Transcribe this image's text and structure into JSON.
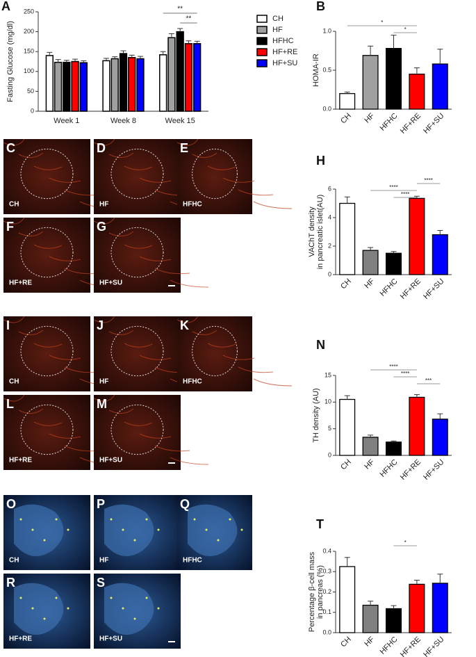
{
  "chart_data": [
    {
      "type": "grouped_bar",
      "letter": "A",
      "y_label": "Fasting Glucose (mg/dl)",
      "categories": [
        "Week 1",
        "Week 8",
        "Week 15"
      ],
      "series": [
        {
          "name": "CH",
          "color": "#ffffff",
          "values": [
            140,
            127,
            142
          ],
          "errors": [
            8,
            6,
            8
          ]
        },
        {
          "name": "HF",
          "color": "#a0a0a0",
          "values": [
            123,
            132,
            185
          ],
          "errors": [
            7,
            5,
            10
          ]
        },
        {
          "name": "HFHC",
          "color": "#000000",
          "values": [
            123,
            145,
            200
          ],
          "errors": [
            5,
            7,
            8
          ]
        },
        {
          "name": "HF+RE",
          "color": "#ff0000",
          "values": [
            125,
            135,
            170
          ],
          "errors": [
            6,
            6,
            7
          ]
        },
        {
          "name": "HF+SU",
          "color": "#0000ff",
          "values": [
            122,
            132,
            170
          ],
          "errors": [
            5,
            6,
            6
          ]
        }
      ],
      "ylim": [
        0,
        250
      ],
      "yticks": [
        0,
        50,
        100,
        150,
        200,
        250
      ],
      "annotations": [
        {
          "text": "**",
          "category": 2,
          "from": 0,
          "to": 4
        },
        {
          "text": "**",
          "category": 2,
          "from": 2,
          "to": 4
        }
      ]
    },
    {
      "type": "bar",
      "letter": "B",
      "y_label": [
        "HOMA-IR"
      ],
      "categories": [
        "CH",
        "HF",
        "HFHC",
        "HF+RE",
        "HF+SU"
      ],
      "colors": [
        "#ffffff",
        "#a0a0a0",
        "#000000",
        "#ff0000",
        "#0000ff"
      ],
      "values": [
        0.2,
        0.69,
        0.78,
        0.45,
        0.58
      ],
      "errors": [
        0.02,
        0.12,
        0.17,
        0.08,
        0.19
      ],
      "ylim": [
        0,
        1
      ],
      "yticks": [
        {
          "value": 0,
          "label": "0.0"
        },
        {
          "value": 0.5,
          "label": "0.5"
        },
        {
          "value": 1,
          "label": "1.0"
        }
      ],
      "annotations": [
        {
          "text": "*",
          "from": 0,
          "to": 3
        },
        {
          "text": "*",
          "from": 2,
          "to": 3
        }
      ]
    },
    {
      "type": "bar",
      "letter": "H",
      "y_label": [
        "VAChT density",
        "in pancreatic islet(AU)"
      ],
      "categories": [
        "CH",
        "HF",
        "HFHC",
        "HF+RE",
        "HF+SU"
      ],
      "colors": [
        "#ffffff",
        "#808080",
        "#000000",
        "#ff0000",
        "#0000ff"
      ],
      "values": [
        5.0,
        1.7,
        1.5,
        5.35,
        2.8
      ],
      "errors": [
        0.45,
        0.2,
        0.12,
        0.15,
        0.3
      ],
      "ylim": [
        0,
        6
      ],
      "yticks": [
        0,
        2,
        4,
        6
      ],
      "annotations": [
        {
          "text": "****",
          "from": 3,
          "to": 4
        },
        {
          "text": "****",
          "from": 1,
          "to": 3
        },
        {
          "text": "****",
          "from": 2,
          "to": 3
        }
      ]
    },
    {
      "type": "bar",
      "letter": "N",
      "y_label": [
        "TH density (AU)"
      ],
      "categories": [
        "CH",
        "HF",
        "HFHC",
        "HF+RE",
        "HF+SU"
      ],
      "colors": [
        "#ffffff",
        "#808080",
        "#000000",
        "#ff0000",
        "#0000ff"
      ],
      "values": [
        10.5,
        3.4,
        2.5,
        10.9,
        6.8
      ],
      "errors": [
        0.7,
        0.4,
        0.2,
        0.5,
        1.0
      ],
      "ylim": [
        0,
        15
      ],
      "yticks": [
        0,
        5,
        10,
        15
      ],
      "annotations": [
        {
          "text": "****",
          "from": 1,
          "to": 3
        },
        {
          "text": "****",
          "from": 2,
          "to": 3
        },
        {
          "text": "***",
          "from": 3,
          "to": 4
        }
      ]
    },
    {
      "type": "bar",
      "letter": "T",
      "y_label": [
        "Percentage β-cell mass",
        "in pancreas (%)"
      ],
      "categories": [
        "CH",
        "HF",
        "HFHC",
        "HF+RE",
        "HF+SU"
      ],
      "colors": [
        "#ffffff",
        "#808080",
        "#000000",
        "#ff0000",
        "#0000ff"
      ],
      "values": [
        0.325,
        0.135,
        0.118,
        0.238,
        0.243
      ],
      "errors": [
        0.045,
        0.02,
        0.015,
        0.02,
        0.045
      ],
      "ylim": [
        0,
        0.4
      ],
      "yticks": [
        {
          "value": 0,
          "label": "0.0"
        },
        {
          "value": 0.1,
          "label": "0.1"
        },
        {
          "value": 0.2,
          "label": "0.2"
        },
        {
          "value": 0.3,
          "label": "0.3"
        },
        {
          "value": 0.4,
          "label": "0.4"
        }
      ],
      "annotations": [
        {
          "text": "*",
          "from": 2,
          "to": 3
        }
      ]
    }
  ],
  "image_groups": [
    {
      "panels": [
        {
          "letter": "C",
          "label": "CH"
        },
        {
          "letter": "D",
          "label": "HF"
        },
        {
          "letter": "E",
          "label": "HFHC"
        },
        {
          "letter": "F",
          "label": "HF+RE"
        },
        {
          "letter": "G",
          "label": "HF+SU"
        }
      ]
    },
    {
      "panels": [
        {
          "letter": "I",
          "label": "CH"
        },
        {
          "letter": "J",
          "label": "HF"
        },
        {
          "letter": "K",
          "label": "HFHC"
        },
        {
          "letter": "L",
          "label": "HF+RE"
        },
        {
          "letter": "M",
          "label": "HF+SU"
        }
      ]
    },
    {
      "panels": [
        {
          "letter": "O",
          "label": "CH"
        },
        {
          "letter": "P",
          "label": "HF"
        },
        {
          "letter": "Q",
          "label": "HFHC"
        },
        {
          "letter": "R",
          "label": "HF+RE"
        },
        {
          "letter": "S",
          "label": "HF+SU"
        }
      ]
    }
  ]
}
